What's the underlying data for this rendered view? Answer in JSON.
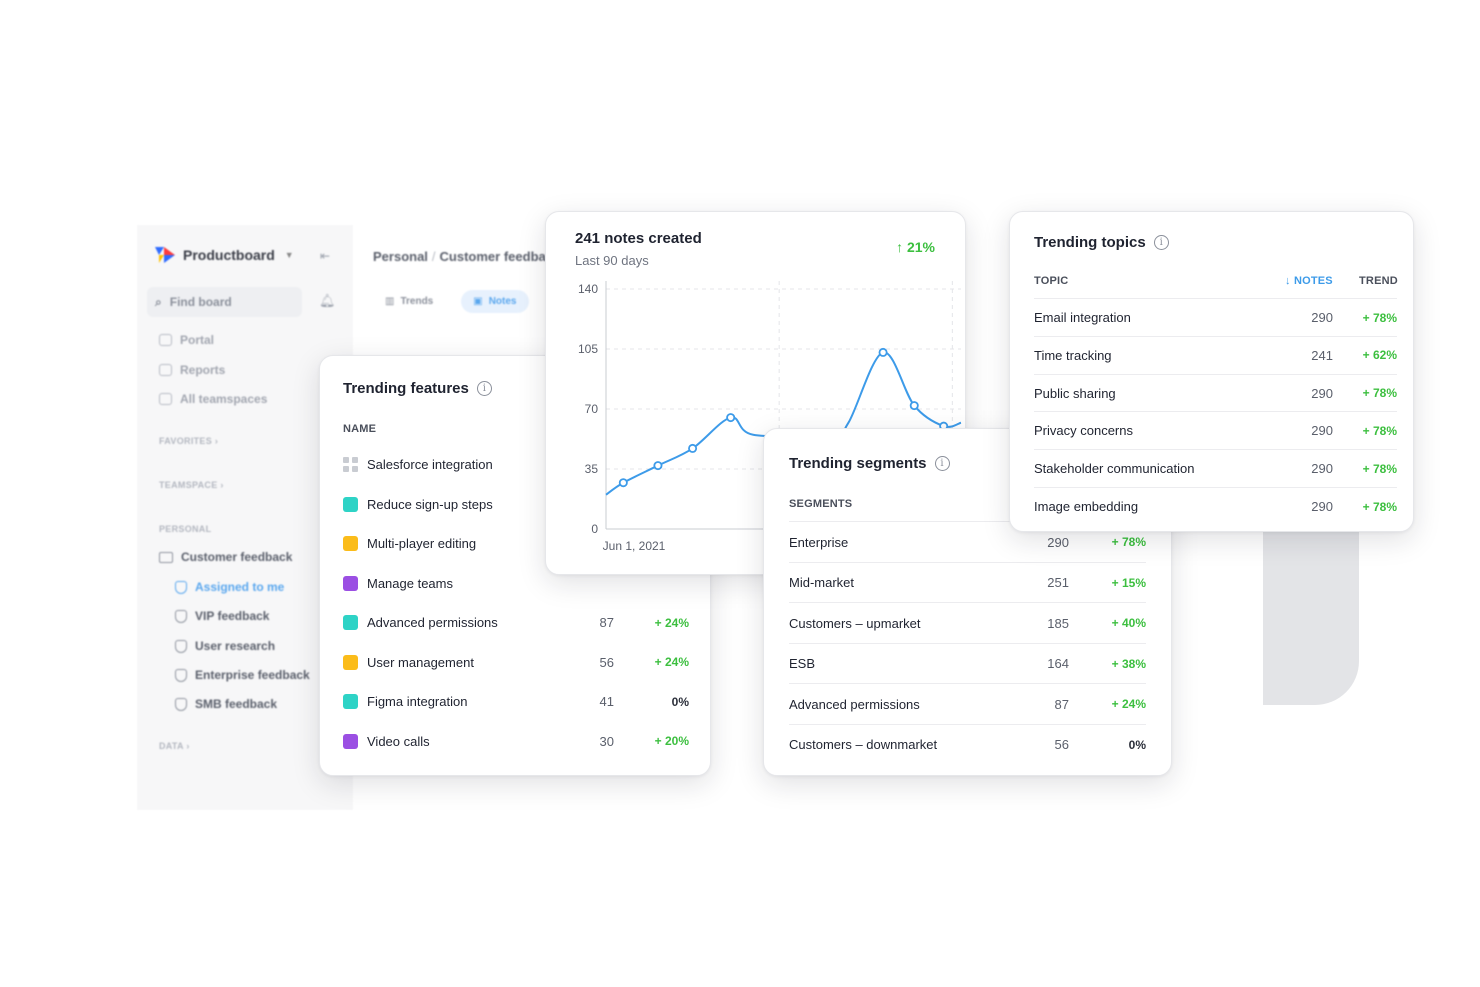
{
  "background_app": {
    "brand": "Productboard",
    "find_placeholder": "Find board",
    "nav": [
      "Portal",
      "Reports",
      "All teamspaces"
    ],
    "sections": {
      "favorites": "FAVORITES",
      "teamspace": "TEAMSPACE",
      "personal": "PERSONAL",
      "data": "DATA"
    },
    "tree_parent": "Customer feedback",
    "tree_items": [
      "Assigned to me",
      "VIP feedback",
      "User research",
      "Enterprise feedback",
      "SMB feedback"
    ],
    "breadcrumb": {
      "root": "Personal",
      "current": "Customer feedbac"
    },
    "tabs": [
      "Trends",
      "Notes"
    ]
  },
  "trending_features": {
    "title": "Trending features",
    "col_name": "NAME",
    "rows": [
      {
        "name": "Salesforce integration",
        "color": "grid",
        "notes": "",
        "trend": ""
      },
      {
        "name": "Reduce sign-up steps",
        "color": "#2ed3c6",
        "notes": "",
        "trend": ""
      },
      {
        "name": "Multi-player editing",
        "color": "#fbbc1a",
        "notes": "",
        "trend": ""
      },
      {
        "name": "Manage teams",
        "color": "#9b4fe3",
        "notes": "",
        "trend": ""
      },
      {
        "name": "Advanced permissions",
        "color": "#2ed3c6",
        "notes": "87",
        "trend": "+ 24%"
      },
      {
        "name": "User management",
        "color": "#fbbc1a",
        "notes": "56",
        "trend": "+ 24%"
      },
      {
        "name": "Figma integration",
        "color": "#2ed3c6",
        "notes": "41",
        "trend": "0%"
      },
      {
        "name": "Video calls",
        "color": "#9b4fe3",
        "notes": "30",
        "trend": "+ 20%"
      }
    ]
  },
  "notes_chart": {
    "title": "241 notes created",
    "subtitle": "Last 90 days",
    "delta": "↑ 21%",
    "chart_data": {
      "type": "line",
      "y_ticks": [
        "140",
        "105",
        "70",
        "35",
        "0"
      ],
      "ylim": [
        0,
        140
      ],
      "x_tick_labels": [
        "Jun 1, 2021",
        "Jul 1,"
      ],
      "series": [
        {
          "points": [
            [
              0,
              20
            ],
            [
              0.1,
              27
            ],
            [
              0.3,
              37
            ],
            [
              0.5,
              47
            ],
            [
              0.72,
              65
            ],
            [
              0.85,
              55
            ],
            [
              1.3,
              55
            ],
            [
              1.4,
              62
            ],
            [
              1.6,
              103
            ],
            [
              1.78,
              72
            ],
            [
              1.95,
              60
            ],
            [
              2.05,
              62
            ]
          ]
        }
      ],
      "marked_indices": [
        1,
        2,
        3,
        4,
        8,
        9,
        10
      ]
    }
  },
  "trending_segments": {
    "title": "Trending segments",
    "col_name": "SEGMENTS",
    "rows": [
      {
        "name": "Enterprise",
        "notes": "290",
        "trend": "+ 78%"
      },
      {
        "name": "Mid-market",
        "notes": "251",
        "trend": "+ 15%"
      },
      {
        "name": "Customers – upmarket",
        "notes": "185",
        "trend": "+ 40%"
      },
      {
        "name": "ESB",
        "notes": "164",
        "trend": "+ 38%"
      },
      {
        "name": "Advanced permissions",
        "notes": "87",
        "trend": "+ 24%"
      },
      {
        "name": "Customers – downmarket",
        "notes": "56",
        "trend": "0%"
      }
    ]
  },
  "trending_topics": {
    "title": "Trending topics",
    "col_topic": "TOPIC",
    "col_notes": "↓ NOTES",
    "col_trend": "TREND",
    "rows": [
      {
        "name": "Email integration",
        "notes": "290",
        "trend": "+ 78%"
      },
      {
        "name": "Time tracking",
        "notes": "241",
        "trend": "+ 62%"
      },
      {
        "name": "Public sharing",
        "notes": "290",
        "trend": "+ 78%"
      },
      {
        "name": "Privacy concerns",
        "notes": "290",
        "trend": "+ 78%"
      },
      {
        "name": "Stakeholder communication",
        "notes": "290",
        "trend": "+ 78%"
      },
      {
        "name": "Image embedding",
        "notes": "290",
        "trend": "+ 78%"
      }
    ]
  },
  "colors": {
    "accent_blue": "#3d9be9",
    "positive_green": "#3cbf3f",
    "teal": "#2ed3c6",
    "yellow": "#fbbc1a",
    "purple": "#9b4fe3"
  }
}
